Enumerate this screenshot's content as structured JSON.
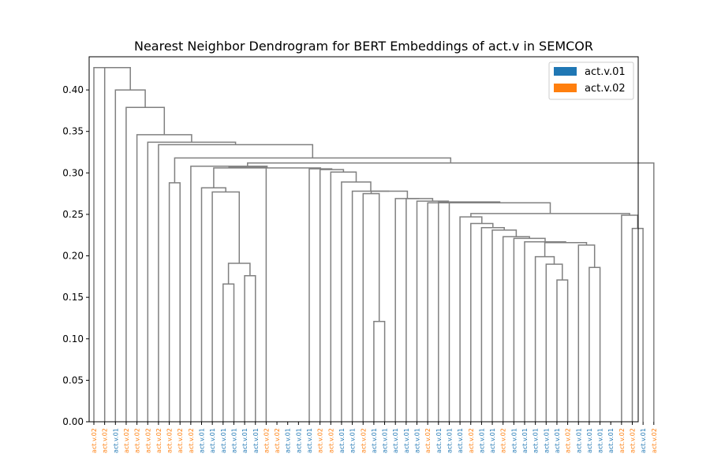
{
  "chart_data": {
    "type": "dendrogram",
    "title": "Nearest Neighbor Dendrogram for BERT Embeddings of act.v in SEMCOR",
    "xlabel": "",
    "ylabel": "",
    "ylim": [
      0,
      0.44
    ],
    "yticks": [
      0.0,
      0.05,
      0.1,
      0.15,
      0.2,
      0.25,
      0.3,
      0.35,
      0.4
    ],
    "ytick_labels": [
      "0.00",
      "0.05",
      "0.10",
      "0.15",
      "0.20",
      "0.25",
      "0.30",
      "0.35",
      "0.40"
    ],
    "grid": false,
    "legend_position": "top-right",
    "legend": [
      {
        "label": "act.v.01",
        "color": "#1f77b4"
      },
      {
        "label": "act.v.02",
        "color": "#ff7f0e"
      }
    ],
    "link_color": "#808080",
    "leaves": [
      "act.v.02",
      "act.v.02",
      "act.v.01",
      "act.v.02",
      "act.v.02",
      "act.v.02",
      "act.v.02",
      "act.v.02",
      "act.v.02",
      "act.v.02",
      "act.v.01",
      "act.v.01",
      "act.v.01",
      "act.v.01",
      "act.v.01",
      "act.v.01",
      "act.v.02",
      "act.v.02",
      "act.v.01",
      "act.v.01",
      "act.v.01",
      "act.v.02",
      "act.v.02",
      "act.v.01",
      "act.v.01",
      "act.v.02",
      "act.v.01",
      "act.v.01",
      "act.v.01",
      "act.v.01",
      "act.v.01",
      "act.v.02",
      "act.v.01",
      "act.v.01",
      "act.v.01",
      "act.v.02",
      "act.v.01",
      "act.v.01",
      "act.v.02",
      "act.v.01",
      "act.v.01",
      "act.v.01",
      "act.v.01",
      "act.v.01",
      "act.v.02",
      "act.v.01",
      "act.v.01",
      "act.v.01",
      "act.v.01",
      "act.v.02",
      "act.v.02",
      "act.v.01",
      "act.v.02"
    ],
    "links": [
      [
        44,
        45,
        45,
        48,
        0.165,
        0.185,
        0.185,
        0.17
      ],
      [
        26,
        26,
        30,
        30,
        0.12,
        0.275,
        0.275,
        0.12
      ],
      [
        11,
        11,
        13,
        13,
        0.165,
        0.19,
        0.19,
        0.175
      ]
    ]
  }
}
